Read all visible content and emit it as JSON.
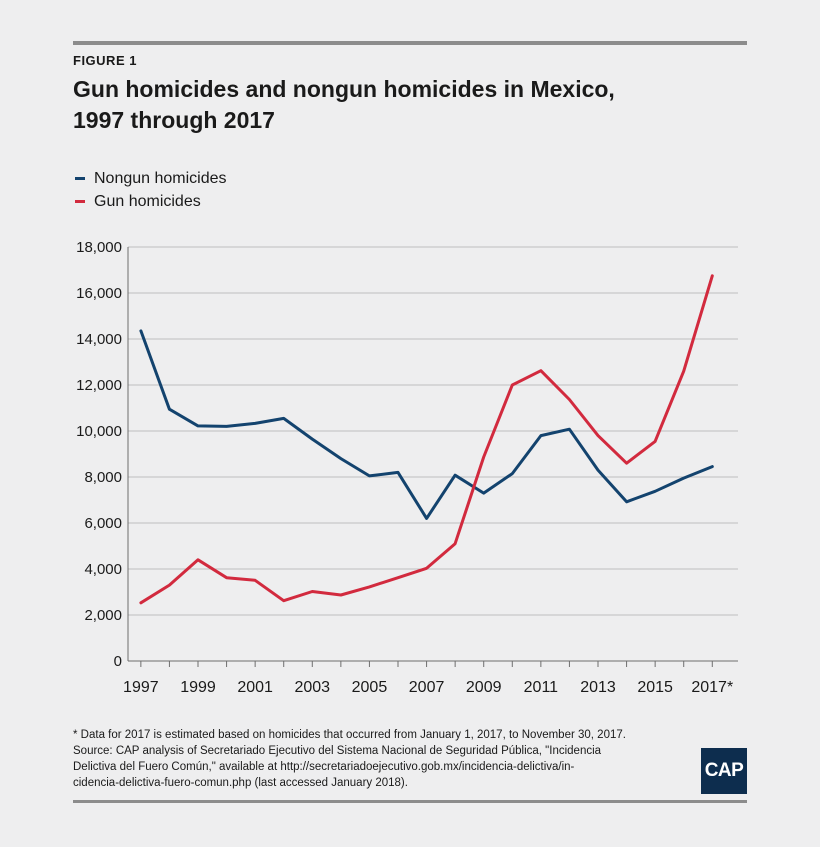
{
  "figure_label": "FIGURE 1",
  "title_line1": "Gun homicides and nongun homicides in Mexico,",
  "title_line2": "1997 through 2017",
  "colors": {
    "nongun": "#13436e",
    "gun": "#d22a3e",
    "grid": "#bfbfbf",
    "background": "#eeeeef"
  },
  "chart_data": {
    "type": "line",
    "title": "Gun homicides and nongun homicides in Mexico, 1997 through 2017",
    "xlabel": "",
    "ylabel": "",
    "x": [
      1997,
      1998,
      1999,
      2000,
      2001,
      2002,
      2003,
      2004,
      2005,
      2006,
      2007,
      2008,
      2009,
      2010,
      2011,
      2012,
      2013,
      2014,
      2015,
      2016,
      2017
    ],
    "x_tick_labels": [
      "1997",
      "1999",
      "2001",
      "2003",
      "2005",
      "2007",
      "2009",
      "2011",
      "2013",
      "2015",
      "2017*"
    ],
    "x_tick_values": [
      1997,
      1999,
      2001,
      2003,
      2005,
      2007,
      2009,
      2011,
      2013,
      2015,
      2017
    ],
    "y_tick_labels": [
      "0",
      "2,000",
      "4,000",
      "6,000",
      "8,000",
      "10,000",
      "12,000",
      "14,000",
      "16,000",
      "18,000"
    ],
    "y_tick_values": [
      0,
      2000,
      4000,
      6000,
      8000,
      10000,
      12000,
      14000,
      16000,
      18000
    ],
    "ylim": [
      0,
      18000
    ],
    "grid": true,
    "legend_position": "top-left",
    "series": [
      {
        "name": "Nongun homicides",
        "color": "#13436e",
        "values": [
          14350,
          10950,
          10220,
          10200,
          10330,
          10550,
          9650,
          8800,
          8050,
          8200,
          6200,
          8080,
          7300,
          8150,
          9800,
          10080,
          8300,
          6920,
          7380,
          7950,
          8450
        ]
      },
      {
        "name": "Gun homicides",
        "color": "#d22a3e",
        "values": [
          2530,
          3300,
          4400,
          3620,
          3510,
          2620,
          3020,
          2870,
          3220,
          3620,
          4030,
          5100,
          8870,
          12000,
          12620,
          11370,
          9800,
          8600,
          9550,
          12600,
          16750
        ]
      }
    ]
  },
  "legend": [
    {
      "label": "Nongun homicides",
      "color": "#13436e"
    },
    {
      "label": "Gun homicides",
      "color": "#d22a3e"
    }
  ],
  "note_line1": "* Data for 2017 is estimated based on homicides that occurred from January 1, 2017, to November 30, 2017.",
  "note_line2": "Source: CAP analysis of Secretariado Ejecutivo del Sistema Nacional de Seguridad Pública, \"Incidencia",
  "note_line3": "Delictiva del Fuero Común,\" available at http://secretariadoejecutivo.gob.mx/incidencia-delictiva/in-",
  "note_line4": "cidencia-delictiva-fuero-comun.php (last accessed January 2018).",
  "logo_text": "CAP"
}
